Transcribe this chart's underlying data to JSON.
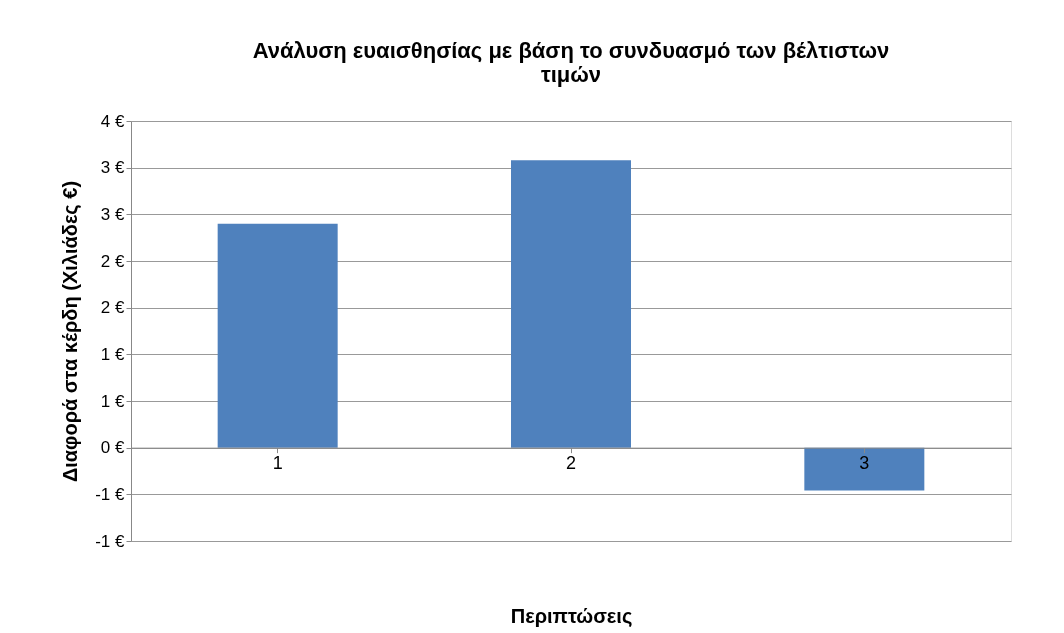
{
  "chart_data": {
    "type": "bar",
    "title": [
      "Ανάλυση ευαισθησίας με βάση το συνδυασμό των βέλτιστων",
      "τιμών"
    ],
    "xlabel": "Περιπτώσεις",
    "ylabel": "Διαφορά στα κέρδη (Χιλιάδες €)",
    "categories": [
      "1",
      "2",
      "3"
    ],
    "series": [
      {
        "color": "#4f81bd",
        "values": [
          2.4,
          3.08,
          -0.46
        ]
      }
    ],
    "ylim": [
      -1,
      3.5
    ],
    "yticks": [
      {
        "value": -1,
        "label": "-1 €"
      },
      {
        "value": -0.5,
        "label": "-1 €"
      },
      {
        "value": 0,
        "label": "0 €"
      },
      {
        "value": 0.5,
        "label": "1 €"
      },
      {
        "value": 1,
        "label": "1 €"
      },
      {
        "value": 1.5,
        "label": "2 €"
      },
      {
        "value": 2,
        "label": "2 €"
      },
      {
        "value": 2.5,
        "label": "3 €"
      },
      {
        "value": 3,
        "label": "3 €"
      },
      {
        "value": 3.5,
        "label": "4 €"
      }
    ],
    "grid": "y"
  }
}
